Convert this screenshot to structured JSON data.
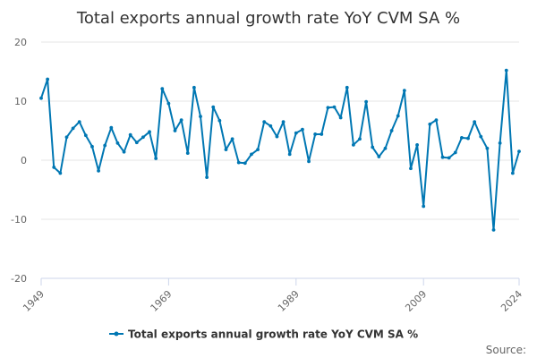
{
  "chart_data": {
    "type": "line",
    "title": "Total exports annual growth rate YoY CVM SA %",
    "xlabel": "",
    "ylabel": "",
    "xlim": [
      1949,
      2024
    ],
    "ylim": [
      -20,
      20
    ],
    "x_ticks": [
      "1949",
      "1969",
      "1989",
      "2009",
      "2024"
    ],
    "y_ticks": [
      "20",
      "10",
      "0",
      "-10",
      "-20"
    ],
    "grid": "horizontal",
    "legend_position": "bottom",
    "series": [
      {
        "name": "Total exports annual growth rate YoY CVM SA %",
        "color": "#0077b3",
        "x": [
          1949,
          1950,
          1951,
          1952,
          1953,
          1954,
          1955,
          1956,
          1957,
          1958,
          1959,
          1960,
          1961,
          1962,
          1963,
          1964,
          1965,
          1966,
          1967,
          1968,
          1969,
          1970,
          1971,
          1972,
          1973,
          1974,
          1975,
          1976,
          1977,
          1978,
          1979,
          1980,
          1981,
          1982,
          1983,
          1984,
          1985,
          1986,
          1987,
          1988,
          1989,
          1990,
          1991,
          1992,
          1993,
          1994,
          1995,
          1996,
          1997,
          1998,
          1999,
          2000,
          2001,
          2002,
          2003,
          2004,
          2005,
          2006,
          2007,
          2008,
          2009,
          2010,
          2011,
          2012,
          2013,
          2014,
          2015,
          2016,
          2017,
          2018,
          2019,
          2020,
          2021,
          2022,
          2023,
          2024
        ],
        "values": [
          10.5,
          13.7,
          -1.2,
          -2.2,
          3.9,
          5.4,
          6.5,
          4.2,
          2.3,
          -1.8,
          2.5,
          5.5,
          2.9,
          1.4,
          4.3,
          3.0,
          3.9,
          4.8,
          0.3,
          12.1,
          9.6,
          5.0,
          6.8,
          1.2,
          12.3,
          7.4,
          -2.9,
          9.0,
          6.7,
          1.8,
          3.6,
          -0.4,
          -0.5,
          1.0,
          1.8,
          6.5,
          5.8,
          4.0,
          6.5,
          1.0,
          4.6,
          5.2,
          -0.2,
          4.4,
          4.4,
          8.9,
          9.0,
          7.2,
          12.3,
          2.6,
          3.6,
          9.9,
          2.2,
          0.6,
          2.0,
          5.0,
          7.5,
          11.8,
          -1.4,
          2.6,
          -7.8,
          6.1,
          6.8,
          0.5,
          0.4,
          1.3,
          3.8,
          3.7,
          6.5,
          4.0,
          2.0,
          -11.8,
          2.9,
          15.2,
          -2.2,
          1.5
        ]
      }
    ]
  },
  "credits": "Source:"
}
